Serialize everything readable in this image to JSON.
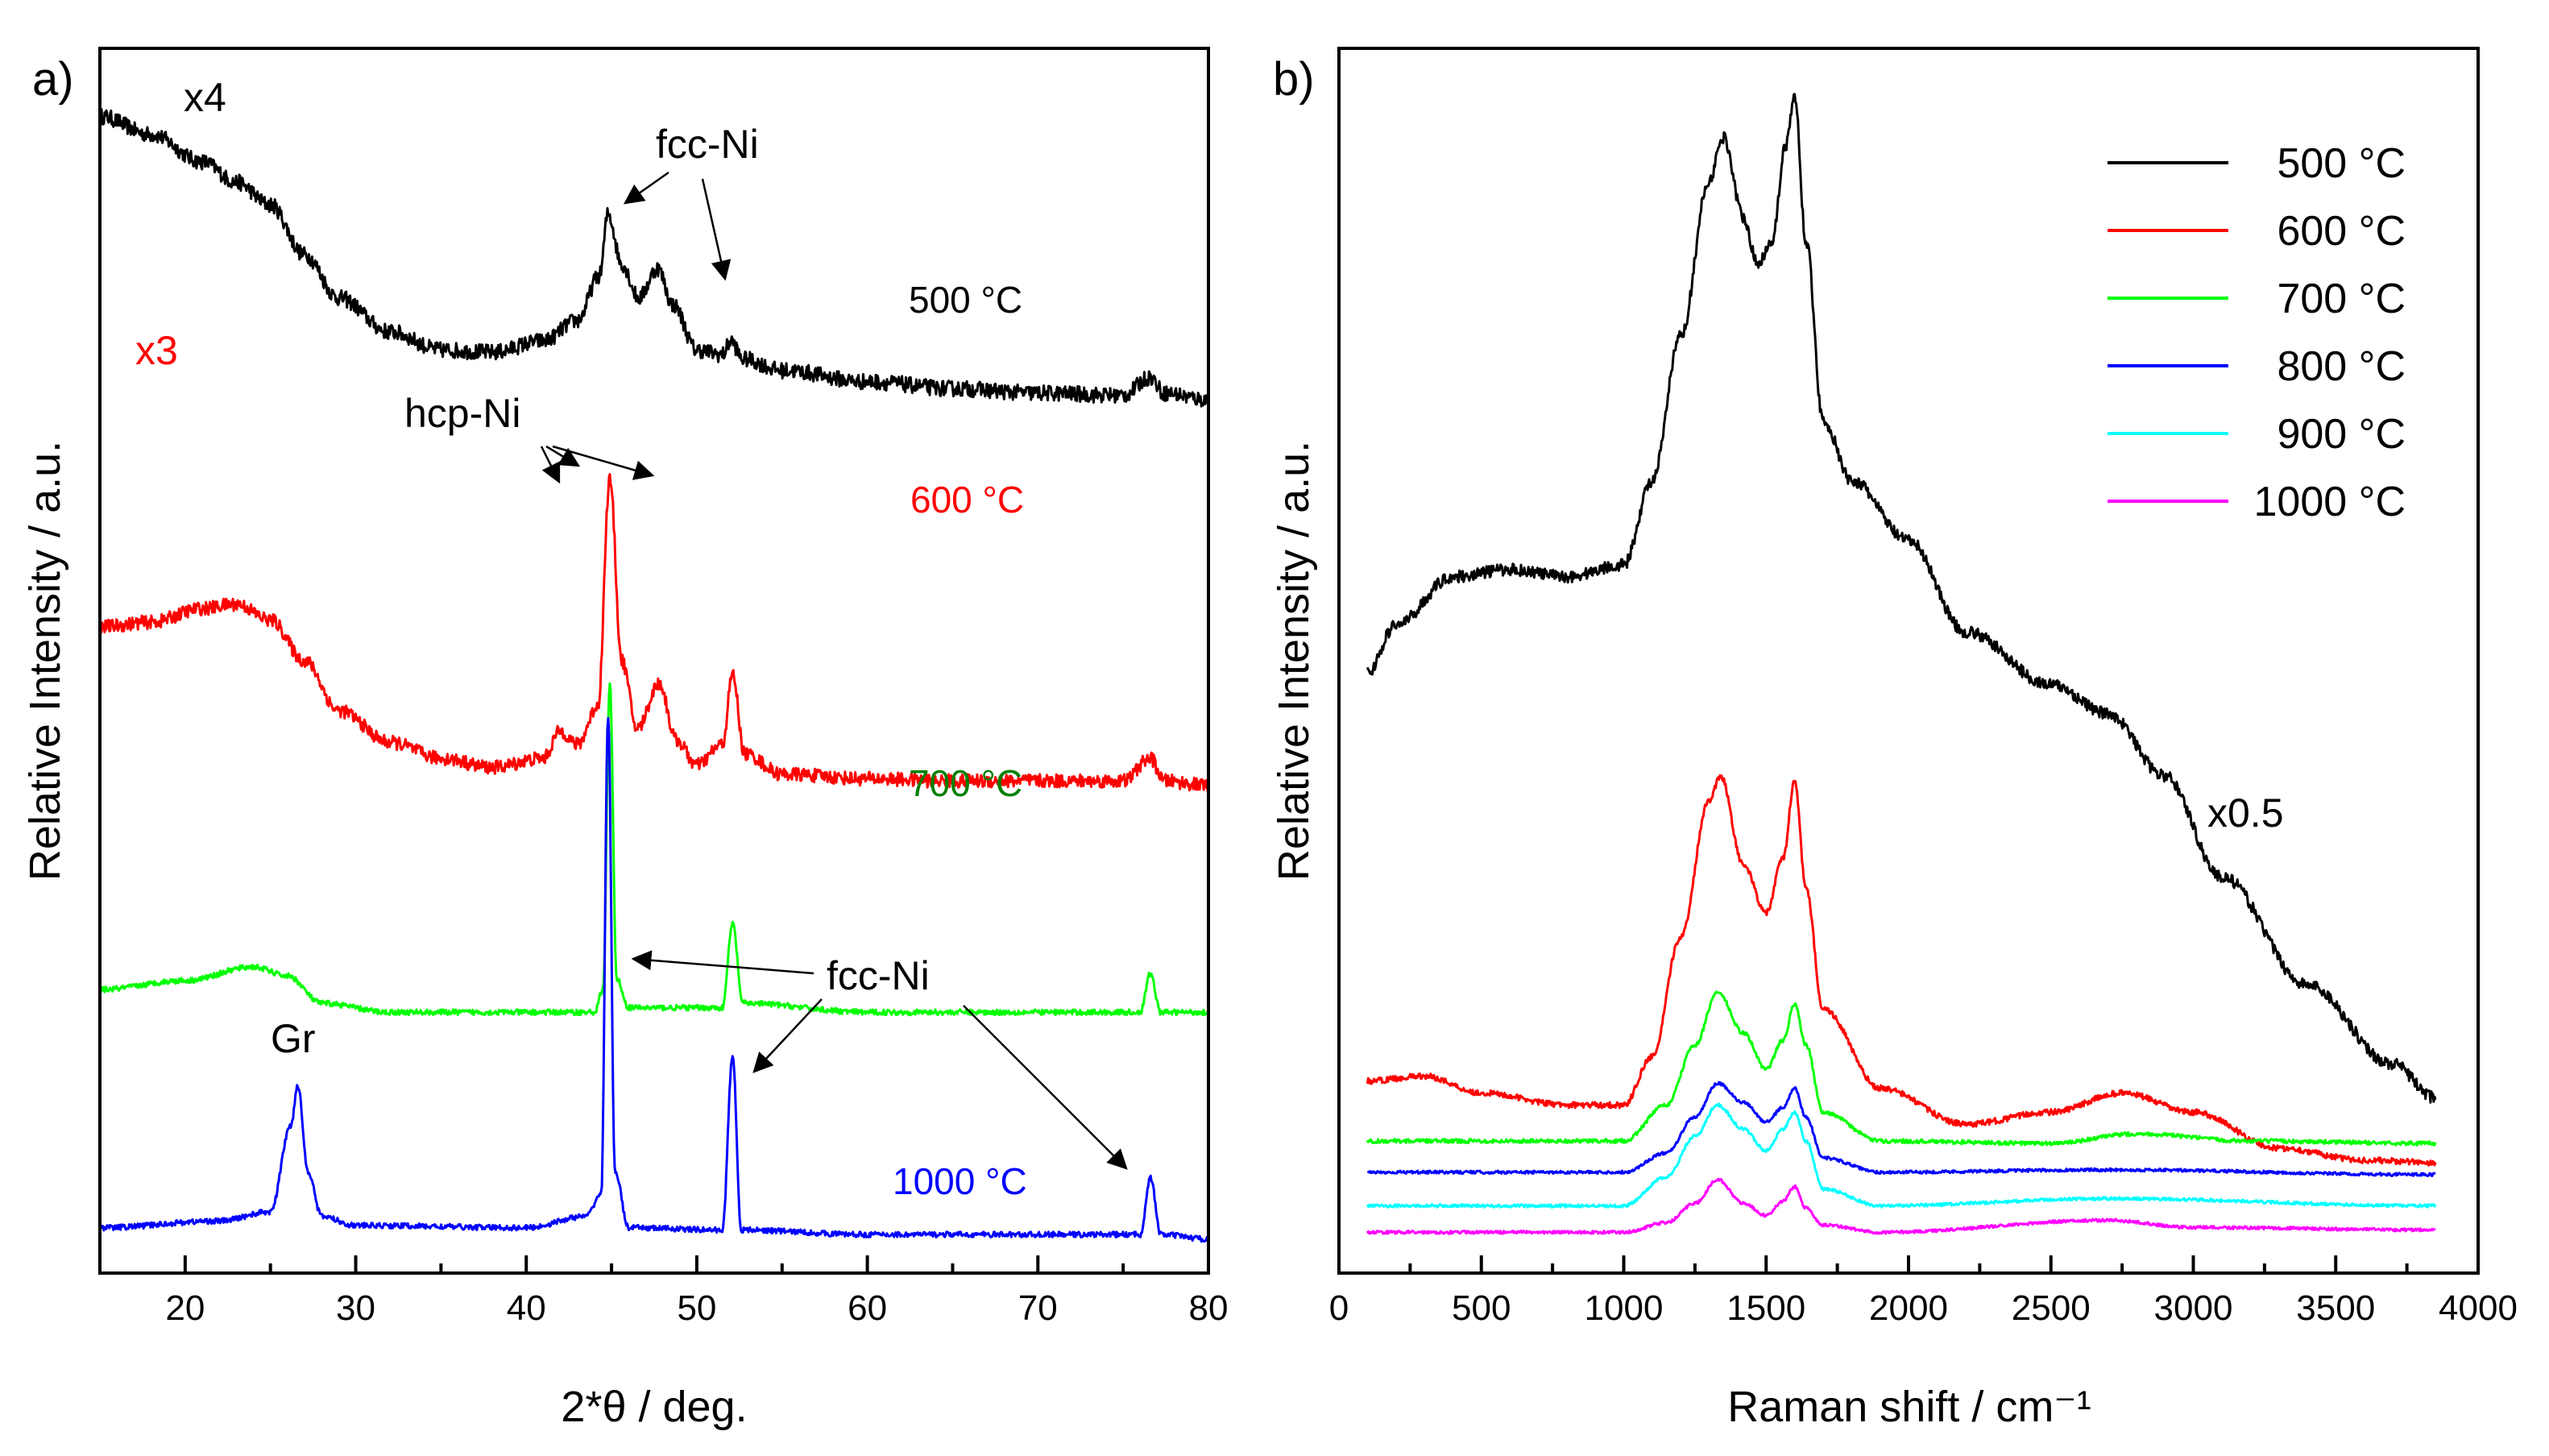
{
  "chart_data": [
    {
      "panel": "a)",
      "type": "line",
      "xlabel": "2*θ / deg.",
      "ylabel": "Relative Intensity / a.u.",
      "xlim": [
        15,
        80
      ],
      "xticks": [
        20,
        30,
        40,
        50,
        60,
        70,
        80
      ],
      "series": [
        {
          "name": "500 °C",
          "color": "#000000",
          "multiplier": "x4",
          "offset": 3.1,
          "baseline": 0.6,
          "points": [
            [
              15,
              1.25
            ],
            [
              18,
              1.17
            ],
            [
              21,
              1.05
            ],
            [
              23,
              0.96
            ],
            [
              25,
              0.86
            ],
            [
              27,
              0.64
            ],
            [
              29,
              0.45
            ],
            [
              32,
              0.3
            ],
            [
              35,
              0.22
            ],
            [
              38,
              0.21
            ],
            [
              41,
              0.26
            ],
            [
              43,
              0.35
            ],
            [
              44.3,
              0.55
            ],
            [
              44.8,
              0.82
            ],
            [
              45.6,
              0.6
            ],
            [
              46.6,
              0.45
            ],
            [
              47.7,
              0.58
            ],
            [
              48.6,
              0.42
            ],
            [
              50,
              0.22
            ],
            [
              51.5,
              0.2
            ],
            [
              52,
              0.26
            ],
            [
              52.7,
              0.18
            ],
            [
              55,
              0.13
            ],
            [
              60,
              0.08
            ],
            [
              65,
              0.05
            ],
            [
              70,
              0.03
            ],
            [
              75,
              0.02
            ],
            [
              76.6,
              0.1
            ],
            [
              77.4,
              0.03
            ],
            [
              80,
              0.0
            ]
          ],
          "noise": 0.035
        },
        {
          "name": "600 °C",
          "color": "#ff0000",
          "multiplier": "x3",
          "offset": 2.0,
          "baseline": 0.0,
          "points": [
            [
              15,
              0.7
            ],
            [
              18,
              0.72
            ],
            [
              21,
              0.78
            ],
            [
              23,
              0.8
            ],
            [
              25,
              0.73
            ],
            [
              27,
              0.55
            ],
            [
              29,
              0.33
            ],
            [
              32,
              0.19
            ],
            [
              35,
              0.12
            ],
            [
              38,
              0.08
            ],
            [
              41,
              0.12
            ],
            [
              42,
              0.24
            ],
            [
              43,
              0.18
            ],
            [
              44.2,
              0.35
            ],
            [
              44.9,
              1.35
            ],
            [
              45.6,
              0.55
            ],
            [
              46.5,
              0.25
            ],
            [
              47.8,
              0.45
            ],
            [
              48.8,
              0.2
            ],
            [
              50,
              0.09
            ],
            [
              51.5,
              0.18
            ],
            [
              52.1,
              0.49
            ],
            [
              52.8,
              0.14
            ],
            [
              55,
              0.05
            ],
            [
              60,
              0.03
            ],
            [
              65,
              0.02
            ],
            [
              70,
              0.02
            ],
            [
              75,
              0.02
            ],
            [
              76.6,
              0.12
            ],
            [
              77.4,
              0.02
            ],
            [
              80,
              0.0
            ]
          ],
          "noise": 0.03
        },
        {
          "name": "700 °C",
          "color": "#00ff00",
          "multiplier": "",
          "offset": 1.0,
          "baseline": 0.0,
          "points": [
            [
              15,
              0.1
            ],
            [
              20,
              0.14
            ],
            [
              24,
              0.2
            ],
            [
              26,
              0.16
            ],
            [
              28,
              0.04
            ],
            [
              32,
              0.0
            ],
            [
              44,
              0.0
            ],
            [
              44.5,
              0.1
            ],
            [
              44.9,
              1.45
            ],
            [
              45.3,
              0.15
            ],
            [
              46,
              0.02
            ],
            [
              51.5,
              0.02
            ],
            [
              52.1,
              0.39
            ],
            [
              52.7,
              0.04
            ],
            [
              60,
              0.0
            ],
            [
              76,
              0.0
            ],
            [
              76.6,
              0.17
            ],
            [
              77.2,
              0.0
            ],
            [
              80,
              0.0
            ]
          ],
          "noise": 0.012
        },
        {
          "name": "1000 °C",
          "color": "#0000ff",
          "multiplier": "",
          "offset": 0.0,
          "baseline": 0.0,
          "points": [
            [
              15,
              0.05
            ],
            [
              22,
              0.08
            ],
            [
              25,
              0.12
            ],
            [
              26.2,
              0.5
            ],
            [
              26.6,
              0.68
            ],
            [
              27.2,
              0.3
            ],
            [
              28,
              0.1
            ],
            [
              30,
              0.06
            ],
            [
              40,
              0.05
            ],
            [
              43.5,
              0.1
            ],
            [
              44.4,
              0.2
            ],
            [
              44.8,
              2.3
            ],
            [
              45.2,
              0.3
            ],
            [
              46,
              0.05
            ],
            [
              51.5,
              0.04
            ],
            [
              52.1,
              0.81
            ],
            [
              52.6,
              0.04
            ],
            [
              60,
              0.02
            ],
            [
              76,
              0.02
            ],
            [
              76.6,
              0.27
            ],
            [
              77.2,
              0.02
            ],
            [
              80,
              0.0
            ]
          ],
          "noise": 0.012
        }
      ],
      "annotations": [
        {
          "text": "x4",
          "color": "#000000"
        },
        {
          "text": "x3",
          "color": "#ff0000"
        },
        {
          "text": "fcc-Ni"
        },
        {
          "text": "hcp-Ni"
        },
        {
          "text": "fcc-Ni"
        },
        {
          "text": "Gr"
        }
      ],
      "series_labels": [
        {
          "text": "500 °C",
          "color": "#000000"
        },
        {
          "text": "600 °C",
          "color": "#ff0000"
        },
        {
          "text": "700 °C",
          "color": "#008000"
        },
        {
          "text": "1000 °C",
          "color": "#0000ff"
        }
      ]
    },
    {
      "panel": "b)",
      "type": "line",
      "xlabel": "Raman shift / cm⁻¹",
      "ylabel": "Relative Intensity / a.u.",
      "xlim": [
        0,
        4000
      ],
      "xticks": [
        0,
        500,
        1000,
        1500,
        2000,
        2500,
        3000,
        3500,
        4000
      ],
      "multiplier_annotation": "x0.5",
      "legend_position": "top-right",
      "series": [
        {
          "name": "500 °C",
          "color": "#000000",
          "scale_note": "x0.5",
          "points": [
            [
              100,
              2.35
            ],
            [
              200,
              2.55
            ],
            [
              400,
              2.75
            ],
            [
              600,
              2.78
            ],
            [
              800,
              2.75
            ],
            [
              1000,
              2.8
            ],
            [
              1100,
              3.15
            ],
            [
              1200,
              3.75
            ],
            [
              1300,
              4.4
            ],
            [
              1350,
              4.58
            ],
            [
              1420,
              4.25
            ],
            [
              1470,
              4.05
            ],
            [
              1520,
              4.15
            ],
            [
              1570,
              4.55
            ],
            [
              1600,
              4.75
            ],
            [
              1640,
              4.15
            ],
            [
              1700,
              3.4
            ],
            [
              1800,
              3.15
            ],
            [
              2000,
              2.9
            ],
            [
              2200,
              2.52
            ],
            [
              2500,
              2.3
            ],
            [
              2700,
              2.18
            ],
            [
              2900,
              1.92
            ],
            [
              3100,
              1.5
            ],
            [
              3400,
              1.05
            ],
            [
              3700,
              0.72
            ],
            [
              3850,
              0.58
            ]
          ],
          "noise": 0.025
        },
        {
          "name": "600 °C",
          "color": "#ff0000",
          "points": [
            [
              100,
              0.65
            ],
            [
              300,
              0.67
            ],
            [
              500,
              0.6
            ],
            [
              800,
              0.55
            ],
            [
              1000,
              0.55
            ],
            [
              1100,
              0.75
            ],
            [
              1200,
              1.25
            ],
            [
              1300,
              1.82
            ],
            [
              1340,
              1.92
            ],
            [
              1420,
              1.55
            ],
            [
              1500,
              1.35
            ],
            [
              1560,
              1.58
            ],
            [
              1600,
              1.9
            ],
            [
              1640,
              1.45
            ],
            [
              1700,
              0.95
            ],
            [
              1900,
              0.62
            ],
            [
              2200,
              0.47
            ],
            [
              2500,
              0.52
            ],
            [
              2750,
              0.6
            ],
            [
              3000,
              0.52
            ],
            [
              3300,
              0.37
            ],
            [
              3600,
              0.32
            ],
            [
              3850,
              0.31
            ]
          ],
          "noise": 0.012
        },
        {
          "name": "700 °C",
          "color": "#00ff00",
          "points": [
            [
              100,
              0.4
            ],
            [
              500,
              0.4
            ],
            [
              1000,
              0.4
            ],
            [
              1150,
              0.55
            ],
            [
              1250,
              0.8
            ],
            [
              1330,
              1.02
            ],
            [
              1420,
              0.85
            ],
            [
              1500,
              0.7
            ],
            [
              1560,
              0.82
            ],
            [
              1600,
              0.97
            ],
            [
              1640,
              0.8
            ],
            [
              1700,
              0.52
            ],
            [
              1900,
              0.4
            ],
            [
              2500,
              0.39
            ],
            [
              2800,
              0.43
            ],
            [
              3200,
              0.4
            ],
            [
              3850,
              0.39
            ]
          ],
          "noise": 0.008
        },
        {
          "name": "800 °C",
          "color": "#0000ff",
          "points": [
            [
              100,
              0.27
            ],
            [
              1000,
              0.27
            ],
            [
              1150,
              0.35
            ],
            [
              1250,
              0.5
            ],
            [
              1330,
              0.64
            ],
            [
              1420,
              0.56
            ],
            [
              1500,
              0.48
            ],
            [
              1560,
              0.54
            ],
            [
              1600,
              0.62
            ],
            [
              1640,
              0.5
            ],
            [
              1700,
              0.33
            ],
            [
              1900,
              0.27
            ],
            [
              2700,
              0.28
            ],
            [
              3850,
              0.26
            ]
          ],
          "noise": 0.006
        },
        {
          "name": "900 °C",
          "color": "#00ffff",
          "points": [
            [
              100,
              0.13
            ],
            [
              1000,
              0.13
            ],
            [
              1150,
              0.25
            ],
            [
              1250,
              0.42
            ],
            [
              1330,
              0.55
            ],
            [
              1420,
              0.45
            ],
            [
              1500,
              0.36
            ],
            [
              1560,
              0.45
            ],
            [
              1600,
              0.52
            ],
            [
              1640,
              0.4
            ],
            [
              1700,
              0.2
            ],
            [
              1900,
              0.13
            ],
            [
              2700,
              0.16
            ],
            [
              3850,
              0.13
            ]
          ],
          "noise": 0.006
        },
        {
          "name": "1000 °C",
          "color": "#ff00ff",
          "points": [
            [
              100,
              0.02
            ],
            [
              1000,
              0.02
            ],
            [
              1150,
              0.06
            ],
            [
              1250,
              0.14
            ],
            [
              1330,
              0.24
            ],
            [
              1420,
              0.14
            ],
            [
              1500,
              0.09
            ],
            [
              1560,
              0.15
            ],
            [
              1600,
              0.21
            ],
            [
              1640,
              0.12
            ],
            [
              1700,
              0.05
            ],
            [
              1900,
              0.02
            ],
            [
              2700,
              0.07
            ],
            [
              3000,
              0.04
            ],
            [
              3850,
              0.03
            ]
          ],
          "noise": 0.006
        }
      ]
    }
  ]
}
